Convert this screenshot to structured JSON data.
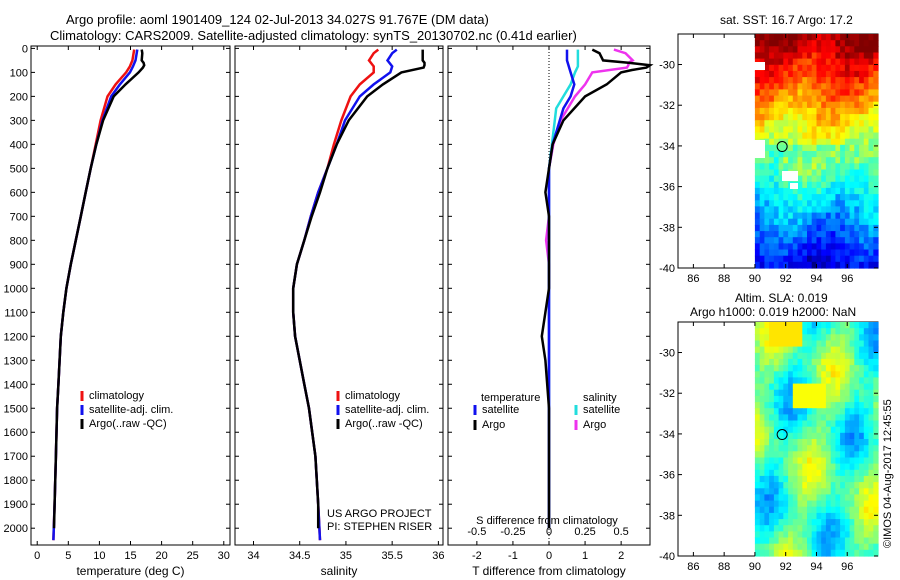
{
  "title_line1": "Argo profile: aoml 1901409_124 02-Jul-2013 34.027S 91.767E (DM data)",
  "title_line2": "Climatology: CARS2009. Satellite-adjusted climatology: synTS_20130702.nc (0.41d earlier)",
  "sst_title": "sat. SST: 16.7 Argo: 17.2",
  "sla_title_line1": "Altim. SLA: 0.019",
  "sla_title_line2": "Argo h1000: 0.019 h2000: NaN",
  "footer_vertical": "©IMOS 04-Aug-2017 12:45:55",
  "colors": {
    "climatology": "#ee1111",
    "satellite": "#1111ee",
    "argo": "#000000",
    "sal_satellite": "#22dddd",
    "sal_argo": "#ee33ee"
  },
  "chart_data": [
    {
      "type": "line",
      "name": "temperature",
      "xlabel": "temperature (deg C)",
      "ylabel": "",
      "xlim": [
        -1,
        31
      ],
      "ylim": [
        2070,
        -10
      ],
      "xticks": [
        "0",
        "5",
        "10",
        "15",
        "20",
        "25",
        "30"
      ],
      "xtick_values": [
        0,
        5,
        10,
        15,
        20,
        25,
        30
      ],
      "yticks": [
        "0",
        "100",
        "200",
        "300",
        "400",
        "500",
        "600",
        "700",
        "800",
        "900",
        "1000",
        "1100",
        "1200",
        "1300",
        "1400",
        "1500",
        "1600",
        "1700",
        "1800",
        "1900",
        "2000"
      ],
      "ytick_values": [
        0,
        100,
        200,
        300,
        400,
        500,
        600,
        700,
        800,
        900,
        1000,
        1100,
        1200,
        1300,
        1400,
        1500,
        1600,
        1700,
        1800,
        1900,
        2000
      ],
      "legend": [
        "climatology",
        "satellite-adj. clim.",
        "Argo(..raw -QC)"
      ],
      "series": [
        {
          "name": "climatology",
          "depth": [
            5,
            20,
            50,
            75,
            100,
            150,
            200,
            300,
            400,
            500,
            600,
            700,
            800,
            900,
            1000,
            1100,
            1200,
            1300,
            1400,
            1500,
            1700,
            1900,
            2050
          ],
          "values": [
            15.6,
            15.5,
            15.3,
            14.9,
            14.3,
            12.6,
            11.3,
            10.2,
            9.4,
            8.6,
            7.8,
            7.0,
            6.2,
            5.4,
            4.7,
            4.2,
            3.8,
            3.6,
            3.4,
            3.2,
            3.0,
            2.8,
            2.6
          ]
        },
        {
          "name": "satellite-adj. clim.",
          "depth": [
            5,
            20,
            50,
            75,
            100,
            150,
            200,
            300,
            400,
            500,
            600,
            700,
            800,
            900,
            1000,
            1100,
            1200,
            1300,
            1400,
            1500,
            1700,
            1900,
            2050
          ],
          "values": [
            16.1,
            16.0,
            15.8,
            15.4,
            14.9,
            13.3,
            11.9,
            10.5,
            9.5,
            8.6,
            7.8,
            7.0,
            6.2,
            5.4,
            4.7,
            4.2,
            3.8,
            3.6,
            3.4,
            3.2,
            3.0,
            2.8,
            2.6
          ]
        },
        {
          "name": "Argo(..raw -QC)",
          "depth": [
            5,
            20,
            50,
            60,
            70,
            80,
            100,
            150,
            200,
            300,
            400,
            500,
            600,
            700,
            800,
            900,
            1000,
            1100,
            1200,
            1300,
            1400,
            1500,
            1700,
            1900,
            2000
          ],
          "values": [
            16.8,
            16.9,
            16.8,
            17.1,
            17.2,
            17.0,
            16.3,
            14.2,
            12.3,
            10.6,
            9.5,
            8.6,
            7.8,
            7.0,
            6.2,
            5.4,
            4.7,
            4.2,
            3.8,
            3.6,
            3.4,
            3.2,
            3.0,
            2.8,
            2.7
          ]
        }
      ]
    },
    {
      "type": "line",
      "name": "salinity",
      "xlabel": "salinity",
      "xlim": [
        33.8,
        36.05
      ],
      "ylim": [
        2070,
        -10
      ],
      "xticks": [
        "34",
        "34.5",
        "35",
        "35.5",
        "36"
      ],
      "xtick_values": [
        34,
        34.5,
        35,
        35.5,
        36
      ],
      "legend": [
        "climatology",
        "satellite-adj. clim.",
        "Argo(..raw -QC)"
      ],
      "annotations": [
        "US ARGO PROJECT",
        "PI: STEPHEN RISER"
      ],
      "series": [
        {
          "name": "climatology",
          "depth": [
            5,
            20,
            50,
            75,
            100,
            150,
            200,
            300,
            400,
            500,
            600,
            700,
            800,
            900,
            1000,
            1100,
            1200,
            1300,
            1400,
            1500,
            1700,
            1900,
            2050
          ],
          "values": [
            35.35,
            35.3,
            35.25,
            35.3,
            35.3,
            35.15,
            35.05,
            34.95,
            34.87,
            34.8,
            34.7,
            34.62,
            34.55,
            34.47,
            34.43,
            34.43,
            34.45,
            34.5,
            34.55,
            34.6,
            34.67,
            34.7,
            34.72
          ]
        },
        {
          "name": "satellite-adj. clim.",
          "depth": [
            5,
            20,
            50,
            75,
            100,
            150,
            200,
            300,
            400,
            500,
            600,
            700,
            800,
            900,
            1000,
            1100,
            1200,
            1300,
            1400,
            1500,
            1700,
            1900,
            2050
          ],
          "values": [
            35.55,
            35.5,
            35.45,
            35.5,
            35.48,
            35.3,
            35.15,
            34.99,
            34.9,
            34.8,
            34.7,
            34.62,
            34.55,
            34.47,
            34.43,
            34.43,
            34.45,
            34.5,
            34.55,
            34.6,
            34.67,
            34.7,
            34.72
          ]
        },
        {
          "name": "Argo(..raw -QC)",
          "depth": [
            5,
            20,
            50,
            60,
            70,
            80,
            100,
            150,
            200,
            300,
            400,
            500,
            600,
            700,
            800,
            900,
            1000,
            1100,
            1200,
            1300,
            1400,
            1500,
            1700,
            1900,
            2000
          ],
          "values": [
            35.83,
            35.83,
            35.83,
            35.85,
            35.85,
            35.84,
            35.6,
            35.4,
            35.23,
            35.03,
            34.9,
            34.8,
            34.72,
            34.63,
            34.55,
            34.47,
            34.43,
            34.43,
            34.45,
            34.5,
            34.55,
            34.6,
            34.67,
            34.7,
            34.7
          ]
        }
      ]
    },
    {
      "type": "line",
      "name": "difference",
      "xlabel": "T difference from climatology",
      "top_xlabel": "S difference from climatology",
      "xlim": [
        -2.8,
        2.8
      ],
      "ylim": [
        2070,
        -10
      ],
      "xticks": [
        "-2",
        "-1",
        "0",
        "1",
        "2"
      ],
      "xtick_values": [
        -2,
        -1,
        0,
        1,
        2
      ],
      "top_xticks": [
        "-0.5",
        "-0.25",
        "0",
        "0.25",
        "0.5"
      ],
      "top_xtick_values": [
        -0.5,
        -0.25,
        0,
        0.25,
        0.5
      ],
      "legend_temperature_title": "temperature",
      "legend_salinity_title": "salinity",
      "legend_labels": [
        "satellite",
        "Argo",
        "satellite",
        "Argo"
      ],
      "series": [
        {
          "name": "temperature satellite",
          "depth": [
            5,
            50,
            100,
            150,
            200,
            250,
            300,
            400,
            500,
            600,
            800,
            1000,
            1500,
            2000
          ],
          "values": [
            0.5,
            0.5,
            0.6,
            0.7,
            0.6,
            0.4,
            0.3,
            0.1,
            0.0,
            0.0,
            0.0,
            0.0,
            0.0,
            0.0
          ]
        },
        {
          "name": "temperature Argo",
          "depth": [
            5,
            20,
            50,
            60,
            70,
            80,
            90,
            100,
            150,
            200,
            300,
            400,
            500,
            600,
            700,
            800,
            1000,
            1100,
            1200,
            1300,
            1500,
            2000
          ],
          "values": [
            1.2,
            1.4,
            1.5,
            2.2,
            2.8,
            2.7,
            2.3,
            2.0,
            1.6,
            1.0,
            0.4,
            0.1,
            0.0,
            -0.1,
            0.0,
            0.0,
            0.0,
            -0.1,
            -0.2,
            -0.1,
            0.0,
            0.0
          ]
        },
        {
          "name": "salinity satellite",
          "depth": [
            5,
            50,
            75,
            100,
            150,
            200,
            250,
            300,
            400,
            500,
            600,
            800,
            1000,
            1500,
            2000
          ],
          "values": [
            0.2,
            0.2,
            0.2,
            0.18,
            0.15,
            0.1,
            0.05,
            0.04,
            0.02,
            0.0,
            0.0,
            0.0,
            0.0,
            0.0,
            0.0
          ]
        },
        {
          "name": "salinity Argo",
          "depth": [
            5,
            20,
            50,
            60,
            70,
            80,
            100,
            150,
            200,
            300,
            400,
            500,
            600,
            700,
            800,
            900,
            1000,
            1200,
            1500,
            2000
          ],
          "values": [
            0.45,
            0.53,
            0.58,
            0.55,
            0.55,
            0.54,
            0.3,
            0.25,
            0.18,
            0.08,
            0.03,
            0.0,
            0.0,
            0.0,
            -0.02,
            0.0,
            0.0,
            0.0,
            0.0,
            0.0
          ]
        }
      ]
    },
    {
      "type": "heatmap",
      "name": "sst_map",
      "xticks": [
        "86",
        "88",
        "90",
        "92",
        "94",
        "96"
      ],
      "xtick_values": [
        86,
        88,
        90,
        92,
        94,
        96
      ],
      "yticks": [
        "-30",
        "-32",
        "-34",
        "-36",
        "-38",
        "-40"
      ],
      "ytick_values": [
        -30,
        -32,
        -34,
        -36,
        -38,
        -40
      ],
      "xlim": [
        85,
        98
      ],
      "ylim": [
        -40,
        -28.5
      ],
      "data_xlim": [
        90,
        98
      ],
      "marker": [
        91.77,
        -34.03
      ]
    },
    {
      "type": "heatmap",
      "name": "sla_map",
      "xticks": [
        "86",
        "88",
        "90",
        "92",
        "94",
        "96"
      ],
      "xtick_values": [
        86,
        88,
        90,
        92,
        94,
        96
      ],
      "yticks": [
        "-30",
        "-32",
        "-34",
        "-36",
        "-38",
        "-40"
      ],
      "ytick_values": [
        -30,
        -32,
        -34,
        -36,
        -38,
        -40
      ],
      "xlim": [
        85,
        98
      ],
      "ylim": [
        -40,
        -28.5
      ],
      "data_xlim": [
        90,
        98
      ],
      "marker": [
        91.77,
        -34.03
      ]
    }
  ]
}
